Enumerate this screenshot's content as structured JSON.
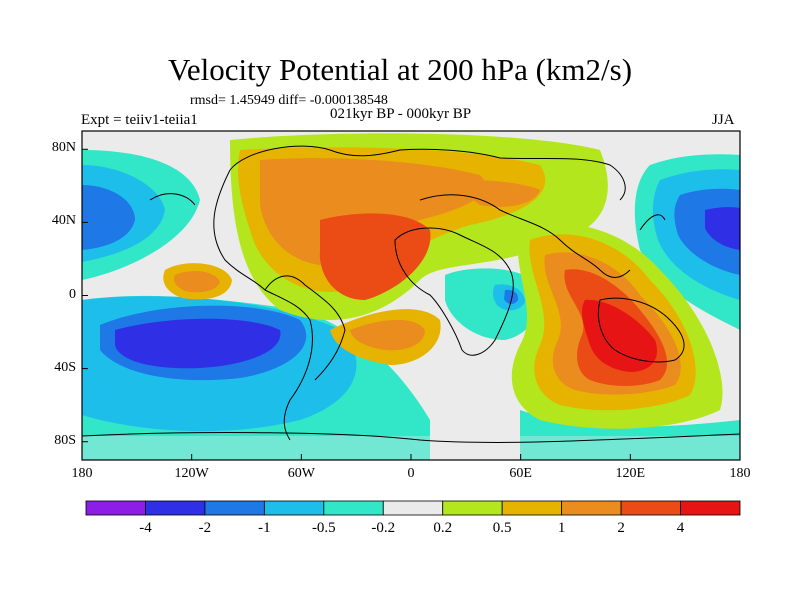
{
  "title": "Velocity Potential at 200 hPa (km2/s)",
  "stats": "rmsd= 1.45949 diff= -0.000138548",
  "experiment": "Expt = teiiv1-teiia1",
  "period": "021kyr BP - 000kyr BP",
  "season": "JJA",
  "lat_ticks": [
    {
      "label": "80N",
      "value": 80
    },
    {
      "label": "40N",
      "value": 40
    },
    {
      "label": "0",
      "value": 0
    },
    {
      "label": "40S",
      "value": -40
    },
    {
      "label": "80S",
      "value": -80
    }
  ],
  "lon_ticks": [
    {
      "label": "180",
      "value": -180
    },
    {
      "label": "120W",
      "value": -120
    },
    {
      "label": "60W",
      "value": -60
    },
    {
      "label": "0",
      "value": 0
    },
    {
      "label": "60E",
      "value": 60
    },
    {
      "label": "120E",
      "value": 120
    },
    {
      "label": "180",
      "value": 180
    }
  ],
  "colorbar": {
    "colors": [
      "#8c1ee6",
      "#2f2fe6",
      "#1e78e6",
      "#1ebeeb",
      "#32e6c8",
      "#ebebeb",
      "#b4e61e",
      "#e6b400",
      "#eb8c1e",
      "#eb4b14",
      "#e61414"
    ],
    "labels": [
      "-4",
      "-2",
      "-1",
      "-0.5",
      "-0.2",
      "0.2",
      "0.5",
      "1",
      "2",
      "4"
    ]
  }
}
